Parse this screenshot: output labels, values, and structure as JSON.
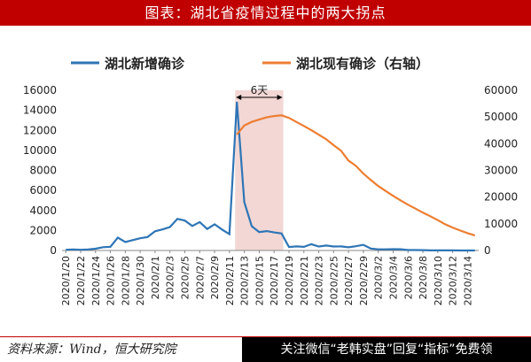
{
  "page": {
    "title": "图表：湖北省疫情过程中的两大拐点",
    "source": "资料来源：Wind，恒大研究院",
    "promo": "关注微信“老韩实盘”回复“指标”免费领"
  },
  "colors": {
    "primary": "#2e75b6",
    "secondary": "#ed7d31",
    "highlight": "#f2d7d5",
    "title_bg": "#c00000"
  },
  "chart_data": {
    "type": "line",
    "annotation": {
      "label": "6天",
      "x_start": "2020/2/12",
      "x_end": "2020/2/18"
    },
    "y_left": {
      "lim": [
        0,
        16000
      ],
      "ticks": [
        "0",
        "2000",
        "4000",
        "6000",
        "8000",
        "10000",
        "12000",
        "14000",
        "16000"
      ]
    },
    "y_right": {
      "lim": [
        0,
        60000
      ],
      "ticks": [
        "0",
        "10000",
        "20000",
        "30000",
        "40000",
        "50000",
        "60000"
      ]
    },
    "x": [
      "2020/1/20",
      "2020/1/21",
      "2020/1/22",
      "2020/1/23",
      "2020/1/24",
      "2020/1/25",
      "2020/1/26",
      "2020/1/27",
      "2020/1/28",
      "2020/1/29",
      "2020/1/30",
      "2020/1/31",
      "2020/2/1",
      "2020/2/2",
      "2020/2/3",
      "2020/2/4",
      "2020/2/5",
      "2020/2/6",
      "2020/2/7",
      "2020/2/8",
      "2020/2/9",
      "2020/2/10",
      "2020/2/11",
      "2020/2/12",
      "2020/2/13",
      "2020/2/14",
      "2020/2/15",
      "2020/2/16",
      "2020/2/17",
      "2020/2/18",
      "2020/2/19",
      "2020/2/20",
      "2020/2/21",
      "2020/2/22",
      "2020/2/23",
      "2020/2/24",
      "2020/2/25",
      "2020/2/26",
      "2020/2/27",
      "2020/2/28",
      "2020/2/29",
      "2020/3/1",
      "2020/3/2",
      "2020/3/3",
      "2020/3/4",
      "2020/3/5",
      "2020/3/6",
      "2020/3/7",
      "2020/3/8",
      "2020/3/9",
      "2020/3/10",
      "2020/3/11",
      "2020/3/12",
      "2020/3/13",
      "2020/3/14",
      "2020/3/15"
    ],
    "x_tick_labels": [
      "2020/1/20",
      "2020/1/22",
      "2020/1/24",
      "2020/1/26",
      "2020/1/28",
      "2020/1/30",
      "2020/2/1",
      "2020/2/3",
      "2020/2/5",
      "2020/2/7",
      "2020/2/9",
      "2020/2/11",
      "2020/2/13",
      "2020/2/15",
      "2020/2/17",
      "2020/2/19",
      "2020/2/21",
      "2020/2/23",
      "2020/2/25",
      "2020/2/27",
      "2020/2/29",
      "2020/3/2",
      "2020/3/4",
      "2020/3/6",
      "2020/3/8",
      "2020/3/10",
      "2020/3/12",
      "2020/3/14"
    ],
    "series": [
      {
        "name": "湖北新增确诊",
        "axis": "left",
        "values": [
          72,
          105,
          69,
          105,
          180,
          323,
          371,
          1291,
          840,
          1032,
          1220,
          1347,
          1921,
          2103,
          2345,
          3156,
          2987,
          2447,
          2841,
          2147,
          2618,
          2097,
          1638,
          14840,
          4823,
          2420,
          1843,
          1933,
          1807,
          1693,
          349,
          411,
          366,
          630,
          398,
          499,
          401,
          409,
          318,
          423,
          570,
          196,
          114,
          115,
          134,
          126,
          41,
          44,
          36,
          13,
          17,
          8,
          5,
          4,
          4,
          4
        ]
      },
      {
        "name": "湖北现有确诊（右轴）",
        "axis": "right",
        "values": [
          null,
          null,
          null,
          null,
          null,
          null,
          null,
          null,
          null,
          null,
          null,
          null,
          null,
          null,
          null,
          null,
          null,
          null,
          null,
          null,
          null,
          null,
          null,
          43455,
          46806,
          48175,
          49030,
          49847,
          50338,
          50633,
          49665,
          48137,
          46648,
          45054,
          43369,
          41660,
          39447,
          37374,
          33693,
          31675,
          28808,
          26403,
          24144,
          22262,
          20458,
          18750,
          17122,
          15671,
          14166,
          12844,
          11356,
          9796,
          8573,
          7503,
          6501,
          5591
        ]
      }
    ]
  }
}
